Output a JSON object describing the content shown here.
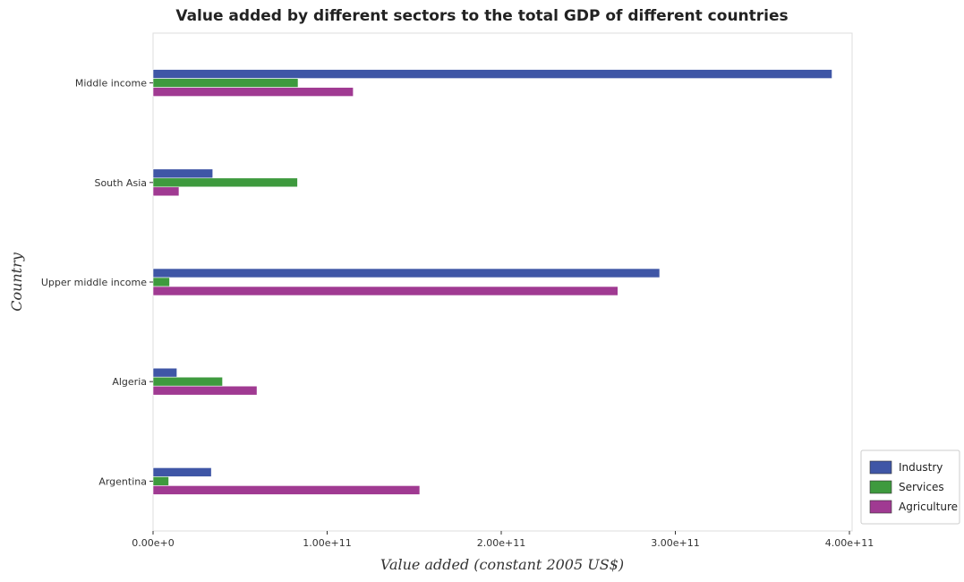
{
  "chart_data": {
    "type": "bar",
    "orientation": "horizontal",
    "title": "Value added by different sectors to the total GDP of different countries",
    "xlabel": "Value added (constant 2005 US$)",
    "ylabel": "Country",
    "xlim": [
      0,
      400000000000
    ],
    "xticks": [
      0,
      100000000000,
      200000000000,
      300000000000,
      400000000000
    ],
    "xtick_labels": [
      "0.00e+0",
      "1.00e+11",
      "2.00e+11",
      "3.00e+11",
      "4.00e+11"
    ],
    "categories": [
      "Middle income",
      "South Asia",
      "Upper middle income",
      "Algeria",
      "Argentina"
    ],
    "series": [
      {
        "name": "Industry",
        "color": "#3f56a6",
        "values": [
          390000000000,
          34300000000,
          291000000000,
          13700000000,
          33500000000
        ]
      },
      {
        "name": "Services",
        "color": "#3e9a3e",
        "values": [
          83300000000,
          83000000000,
          9500000000,
          39900000000,
          9000000000
        ]
      },
      {
        "name": "Agriculture",
        "color": "#a03a92",
        "values": [
          115000000000,
          14900000000,
          267000000000,
          59700000000,
          153200000000
        ]
      }
    ],
    "legend_position": "bottom-right",
    "grid": false
  }
}
